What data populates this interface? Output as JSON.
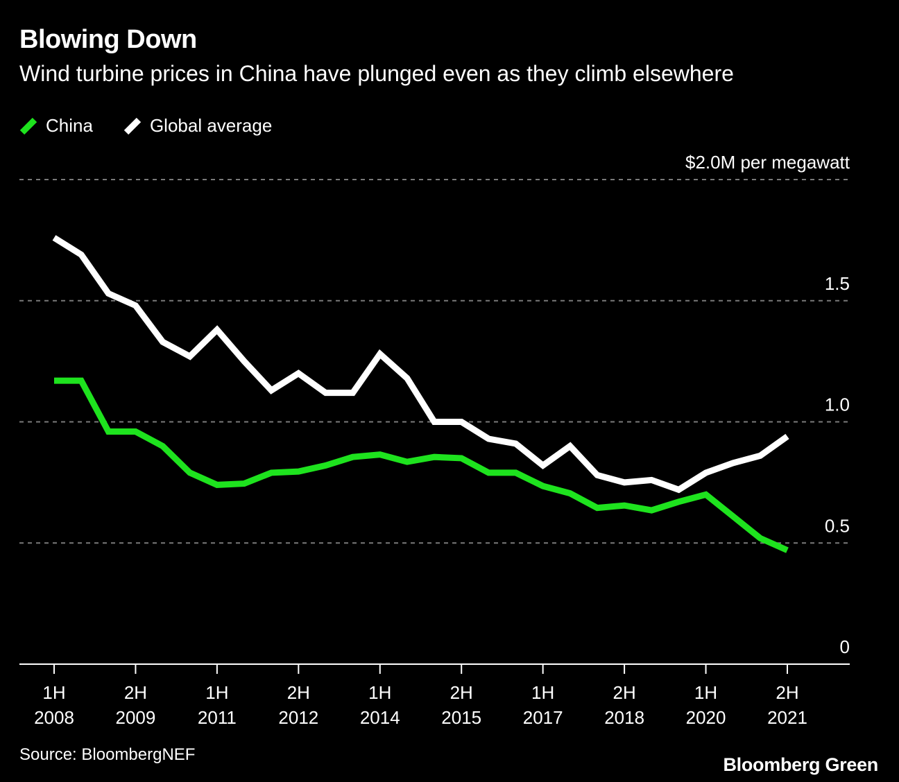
{
  "chart_data": {
    "type": "line",
    "title": "Blowing Down",
    "subtitle": "Wind turbine prices in China have plunged even as they climb elsewhere",
    "ylabel": "$2.0M per megawatt",
    "ylim": [
      0,
      2.0
    ],
    "yticks": [
      {
        "value": 2.0,
        "label": "$2.0M per megawatt"
      },
      {
        "value": 1.5,
        "label": "1.5"
      },
      {
        "value": 1.0,
        "label": "1.0"
      },
      {
        "value": 0.5,
        "label": "0.5"
      },
      {
        "value": 0,
        "label": "0"
      }
    ],
    "x": [
      "1H 2008",
      "2H 2008",
      "1H 2009",
      "2H 2009",
      "1H 2010",
      "2H 2010",
      "1H 2011",
      "2H 2011",
      "1H 2012",
      "2H 2012",
      "1H 2013",
      "2H 2013",
      "1H 2014",
      "2H 2014",
      "1H 2015",
      "2H 2015",
      "1H 2016",
      "2H 2016",
      "1H 2017",
      "2H 2017",
      "1H 2018",
      "2H 2018",
      "1H 2019",
      "2H 2019",
      "1H 2020",
      "2H 2020",
      "1H 2021",
      "2H 2021"
    ],
    "xticks": [
      {
        "index": 0,
        "line1": "1H",
        "line2": "2008"
      },
      {
        "index": 3,
        "line1": "2H",
        "line2": "2009"
      },
      {
        "index": 6,
        "line1": "1H",
        "line2": "2011"
      },
      {
        "index": 9,
        "line1": "2H",
        "line2": "2012"
      },
      {
        "index": 12,
        "line1": "1H",
        "line2": "2014"
      },
      {
        "index": 15,
        "line1": "2H",
        "line2": "2015"
      },
      {
        "index": 18,
        "line1": "1H",
        "line2": "2017"
      },
      {
        "index": 21,
        "line1": "2H",
        "line2": "2018"
      },
      {
        "index": 24,
        "line1": "1H",
        "line2": "2020"
      },
      {
        "index": 27,
        "line1": "2H",
        "line2": "2021"
      }
    ],
    "series": [
      {
        "name": "China",
        "color": "#1ee31e",
        "values": [
          1.17,
          1.17,
          0.96,
          0.96,
          0.9,
          0.79,
          0.74,
          0.745,
          0.79,
          0.795,
          0.82,
          0.855,
          0.865,
          0.835,
          0.855,
          0.85,
          0.79,
          0.79,
          0.735,
          0.705,
          0.645,
          0.655,
          0.635,
          0.67,
          0.7,
          0.61,
          0.52,
          0.47
        ]
      },
      {
        "name": "Global average",
        "color": "#ffffff",
        "values": [
          1.76,
          1.69,
          1.53,
          1.48,
          1.33,
          1.27,
          1.38,
          1.25,
          1.13,
          1.2,
          1.12,
          1.12,
          1.28,
          1.18,
          1.0,
          1.0,
          0.93,
          0.91,
          0.82,
          0.9,
          0.78,
          0.75,
          0.76,
          0.72,
          0.79,
          0.83,
          0.86,
          0.94
        ]
      }
    ],
    "grid": true,
    "legend": "top-left"
  },
  "source": "Source: BloombergNEF",
  "brand": "Bloomberg Green"
}
